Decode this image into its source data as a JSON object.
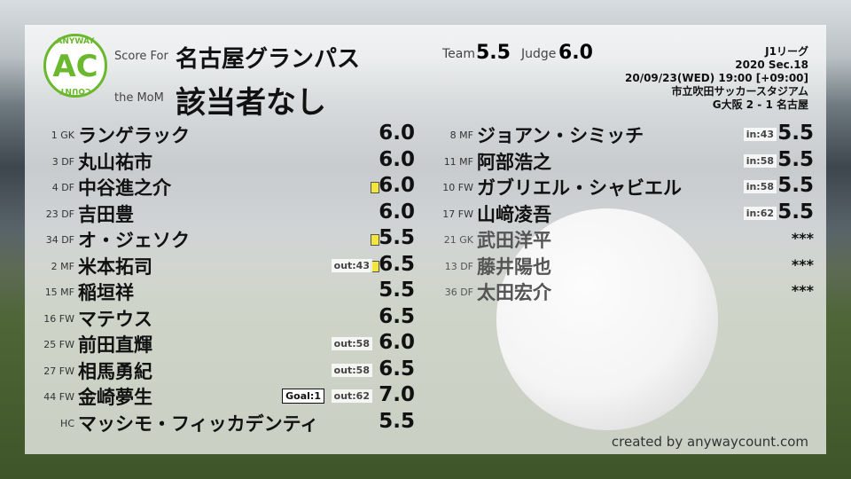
{
  "logo": {
    "top": "ANYWAY",
    "mid": "AC",
    "bottom": "COUNT",
    "color": "#6ab82e"
  },
  "header": {
    "score_for_label": "Score For",
    "team": "名古屋グランパス",
    "mom_label": "the MoM",
    "mom": "該当者なし",
    "team_label": "Team",
    "team_score": "5.5",
    "judge_label": "Judge",
    "judge_score": "6.0"
  },
  "match": {
    "league": "J1リーグ",
    "section": "2020 Sec.18",
    "datetime": "20/09/23(WED) 19:00 [+09:00]",
    "venue": "市立吹田サッカースタジアム",
    "result": "G大阪 2 - 1 名古屋"
  },
  "left_players": [
    {
      "np": "1 GK",
      "name": "ランゲラック",
      "score": "6.0"
    },
    {
      "np": "3 DF",
      "name": "丸山祐市",
      "score": "6.0"
    },
    {
      "np": "4 DF",
      "name": "中谷進之介",
      "score": "6.0",
      "yellow": true
    },
    {
      "np": "23 DF",
      "name": "吉田豊",
      "score": "6.0"
    },
    {
      "np": "34 DF",
      "name": "オ・ジェソク",
      "score": "5.5",
      "yellow": true
    },
    {
      "np": "2 MF",
      "name": "米本拓司",
      "score": "6.5",
      "yellow": true,
      "sub": "out:43"
    },
    {
      "np": "15 MF",
      "name": "稲垣祥",
      "score": "5.5"
    },
    {
      "np": "16 FW",
      "name": "マテウス",
      "score": "6.5"
    },
    {
      "np": "25 FW",
      "name": "前田直輝",
      "score": "6.0",
      "sub": "out:58"
    },
    {
      "np": "27 FW",
      "name": "相馬勇紀",
      "score": "6.5",
      "sub": "out:58"
    },
    {
      "np": "44 FW",
      "name": "金崎夢生",
      "score": "7.0",
      "sub": "out:62",
      "goal": "Goal:1"
    },
    {
      "np": "HC",
      "name": "マッシモ・フィッカデンティ",
      "score": "5.5"
    }
  ],
  "right_players": [
    {
      "np": "8 MF",
      "name": "ジョアン・シミッチ",
      "score": "5.5",
      "sub": "in:43"
    },
    {
      "np": "11 MF",
      "name": "阿部浩之",
      "score": "5.5",
      "sub": "in:58"
    },
    {
      "np": "10 FW",
      "name": "ガブリエル・シャビエル",
      "score": "5.5",
      "sub": "in:58"
    },
    {
      "np": "17 FW",
      "name": "山﨑凌吾",
      "score": "5.5",
      "sub": "in:62"
    },
    {
      "np": "21 GK",
      "name": "武田洋平",
      "score": "***",
      "unused": true
    },
    {
      "np": "13 DF",
      "name": "藤井陽也",
      "score": "***",
      "unused": true
    },
    {
      "np": "36 DF",
      "name": "太田宏介",
      "score": "***",
      "unused": true
    }
  ],
  "credit": "created by anywaycount.com",
  "colors": {
    "yellow_card": "#f2e63a",
    "accent": "#6ab82e"
  }
}
